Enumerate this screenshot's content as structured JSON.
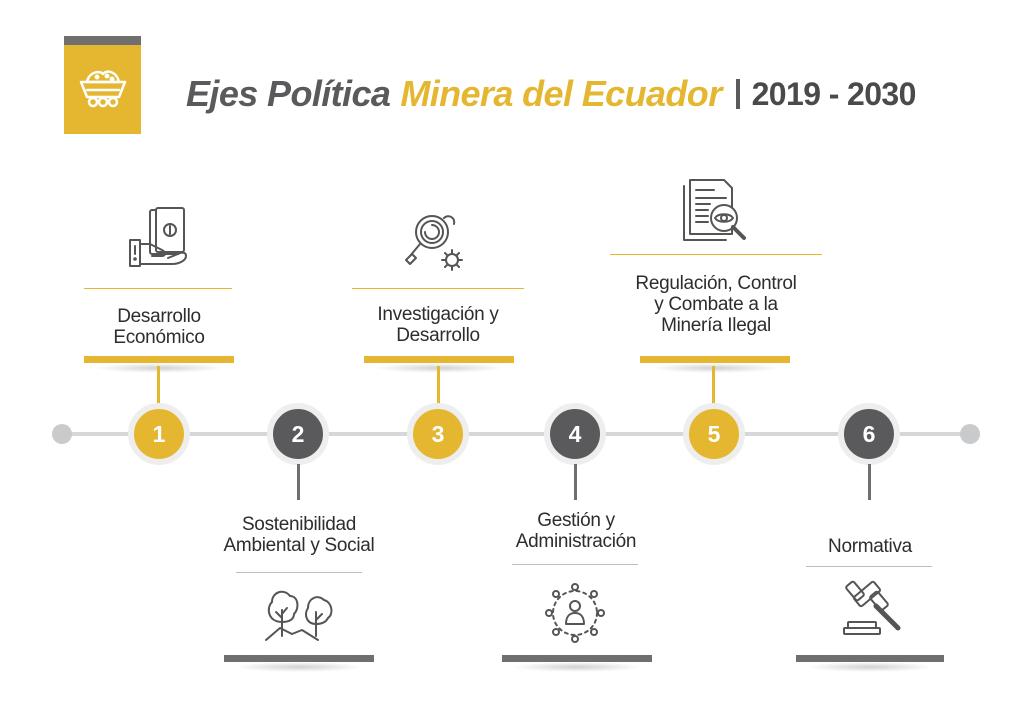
{
  "header": {
    "title_part1": "Ejes Política",
    "title_part2": "Minera del Ecuador",
    "years": "2019 - 2030",
    "icon": "mine-cart-icon"
  },
  "axes": [
    {
      "number": "1",
      "label_line1": "Desarrollo",
      "label_line2": "Económico",
      "icon": "money-hand-icon"
    },
    {
      "number": "2",
      "label_line1": "Sostenibilidad",
      "label_line2": "Ambiental y Social",
      "icon": "trees-icon"
    },
    {
      "number": "3",
      "label_line1": "Investigación y",
      "label_line2": "Desarrollo",
      "icon": "research-gears-icon"
    },
    {
      "number": "4",
      "label_line1": "Gestión y",
      "label_line2": "Administración",
      "icon": "network-person-icon"
    },
    {
      "number": "5",
      "label_line1": "Regulación, Control",
      "label_line2": "y Combate a la",
      "label_line3": "Minería Ilegal",
      "icon": "document-inspection-icon"
    },
    {
      "number": "6",
      "label_line1": "Normativa",
      "icon": "gavel-icon"
    }
  ],
  "colors": {
    "accent": "#e5b731",
    "dark": "#5a5a5c",
    "line": "#d6d7d8"
  }
}
